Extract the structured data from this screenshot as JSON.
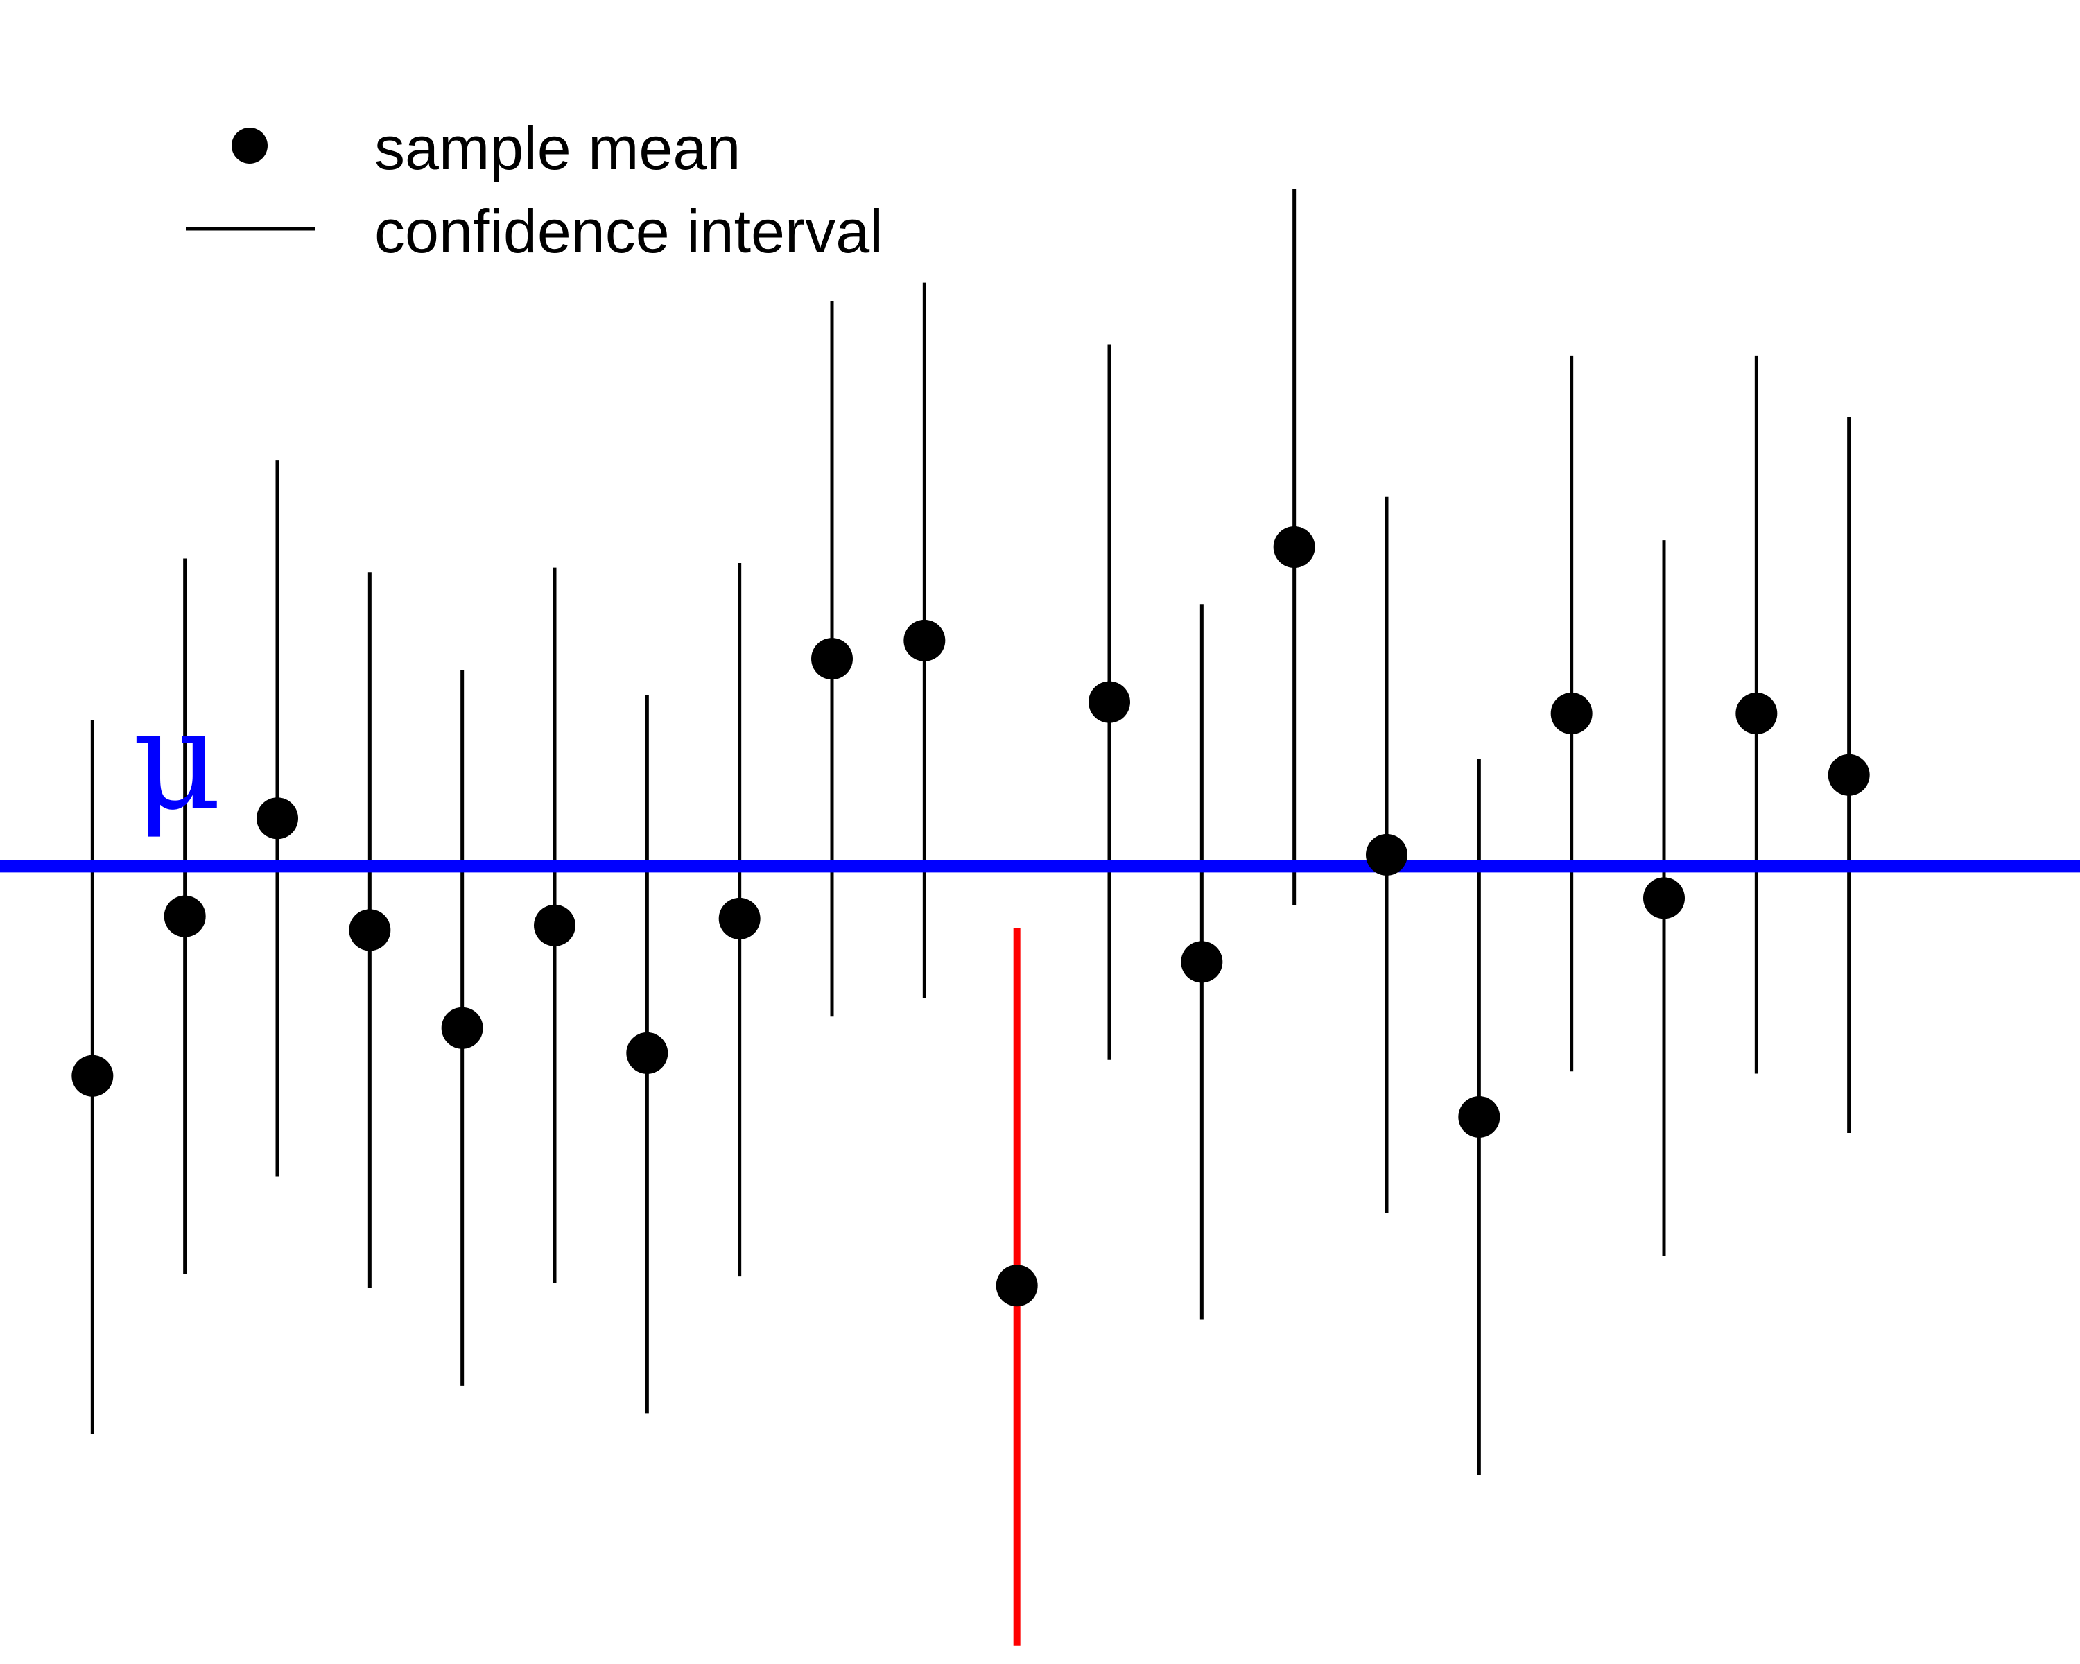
{
  "chart_data": {
    "type": "scatter",
    "title": "",
    "xlabel": "",
    "ylabel": "",
    "xlim": [
      0,
      22.5
    ],
    "ylim": [
      -3.5,
      3.8
    ],
    "grid": false,
    "legend": {
      "placement": "top-left",
      "entries": [
        {
          "label": "sample mean",
          "marker": "point"
        },
        {
          "label": "confidence interval",
          "marker": "line"
        }
      ]
    },
    "reference_line": {
      "label": "μ",
      "value": 0,
      "color": "#0000ff"
    },
    "colors": {
      "point": "#000000",
      "interval": "#000000",
      "miss": "#ff0000"
    },
    "series": [
      {
        "values": [
          {
            "x": 1,
            "mean": -0.92,
            "lower": -2.49,
            "upper": 0.64
          },
          {
            "x": 2,
            "mean": -0.22,
            "lower": -1.79,
            "upper": 1.35
          },
          {
            "x": 3,
            "mean": 0.21,
            "lower": -1.36,
            "upper": 1.78
          },
          {
            "x": 4,
            "mean": -0.28,
            "lower": -1.85,
            "upper": 1.29
          },
          {
            "x": 5,
            "mean": -0.71,
            "lower": -2.28,
            "upper": 0.86
          },
          {
            "x": 6,
            "mean": -0.26,
            "lower": -1.83,
            "upper": 1.31
          },
          {
            "x": 7,
            "mean": -0.82,
            "lower": -2.4,
            "upper": 0.75
          },
          {
            "x": 8,
            "mean": -0.23,
            "lower": -1.8,
            "upper": 1.33
          },
          {
            "x": 9,
            "mean": 0.91,
            "lower": -0.66,
            "upper": 2.48
          },
          {
            "x": 10,
            "mean": 0.99,
            "lower": -0.58,
            "upper": 2.56
          },
          {
            "x": 11,
            "mean": -1.84,
            "lower": -3.42,
            "upper": -0.27,
            "miss": true
          },
          {
            "x": 12,
            "mean": 0.72,
            "lower": -0.85,
            "upper": 2.29
          },
          {
            "x": 13,
            "mean": -0.42,
            "lower": -1.99,
            "upper": 1.15
          },
          {
            "x": 14,
            "mean": 1.4,
            "lower": -0.17,
            "upper": 2.97
          },
          {
            "x": 15,
            "mean": 0.05,
            "lower": -1.52,
            "upper": 1.62
          },
          {
            "x": 16,
            "mean": -1.1,
            "lower": -2.67,
            "upper": 0.47
          },
          {
            "x": 17,
            "mean": 0.67,
            "lower": -0.9,
            "upper": 2.24
          },
          {
            "x": 18,
            "mean": -0.14,
            "lower": -1.71,
            "upper": 1.43
          },
          {
            "x": 19,
            "mean": 0.67,
            "lower": -0.91,
            "upper": 2.24
          },
          {
            "x": 20,
            "mean": 0.4,
            "lower": -1.17,
            "upper": 1.97
          }
        ]
      }
    ]
  }
}
